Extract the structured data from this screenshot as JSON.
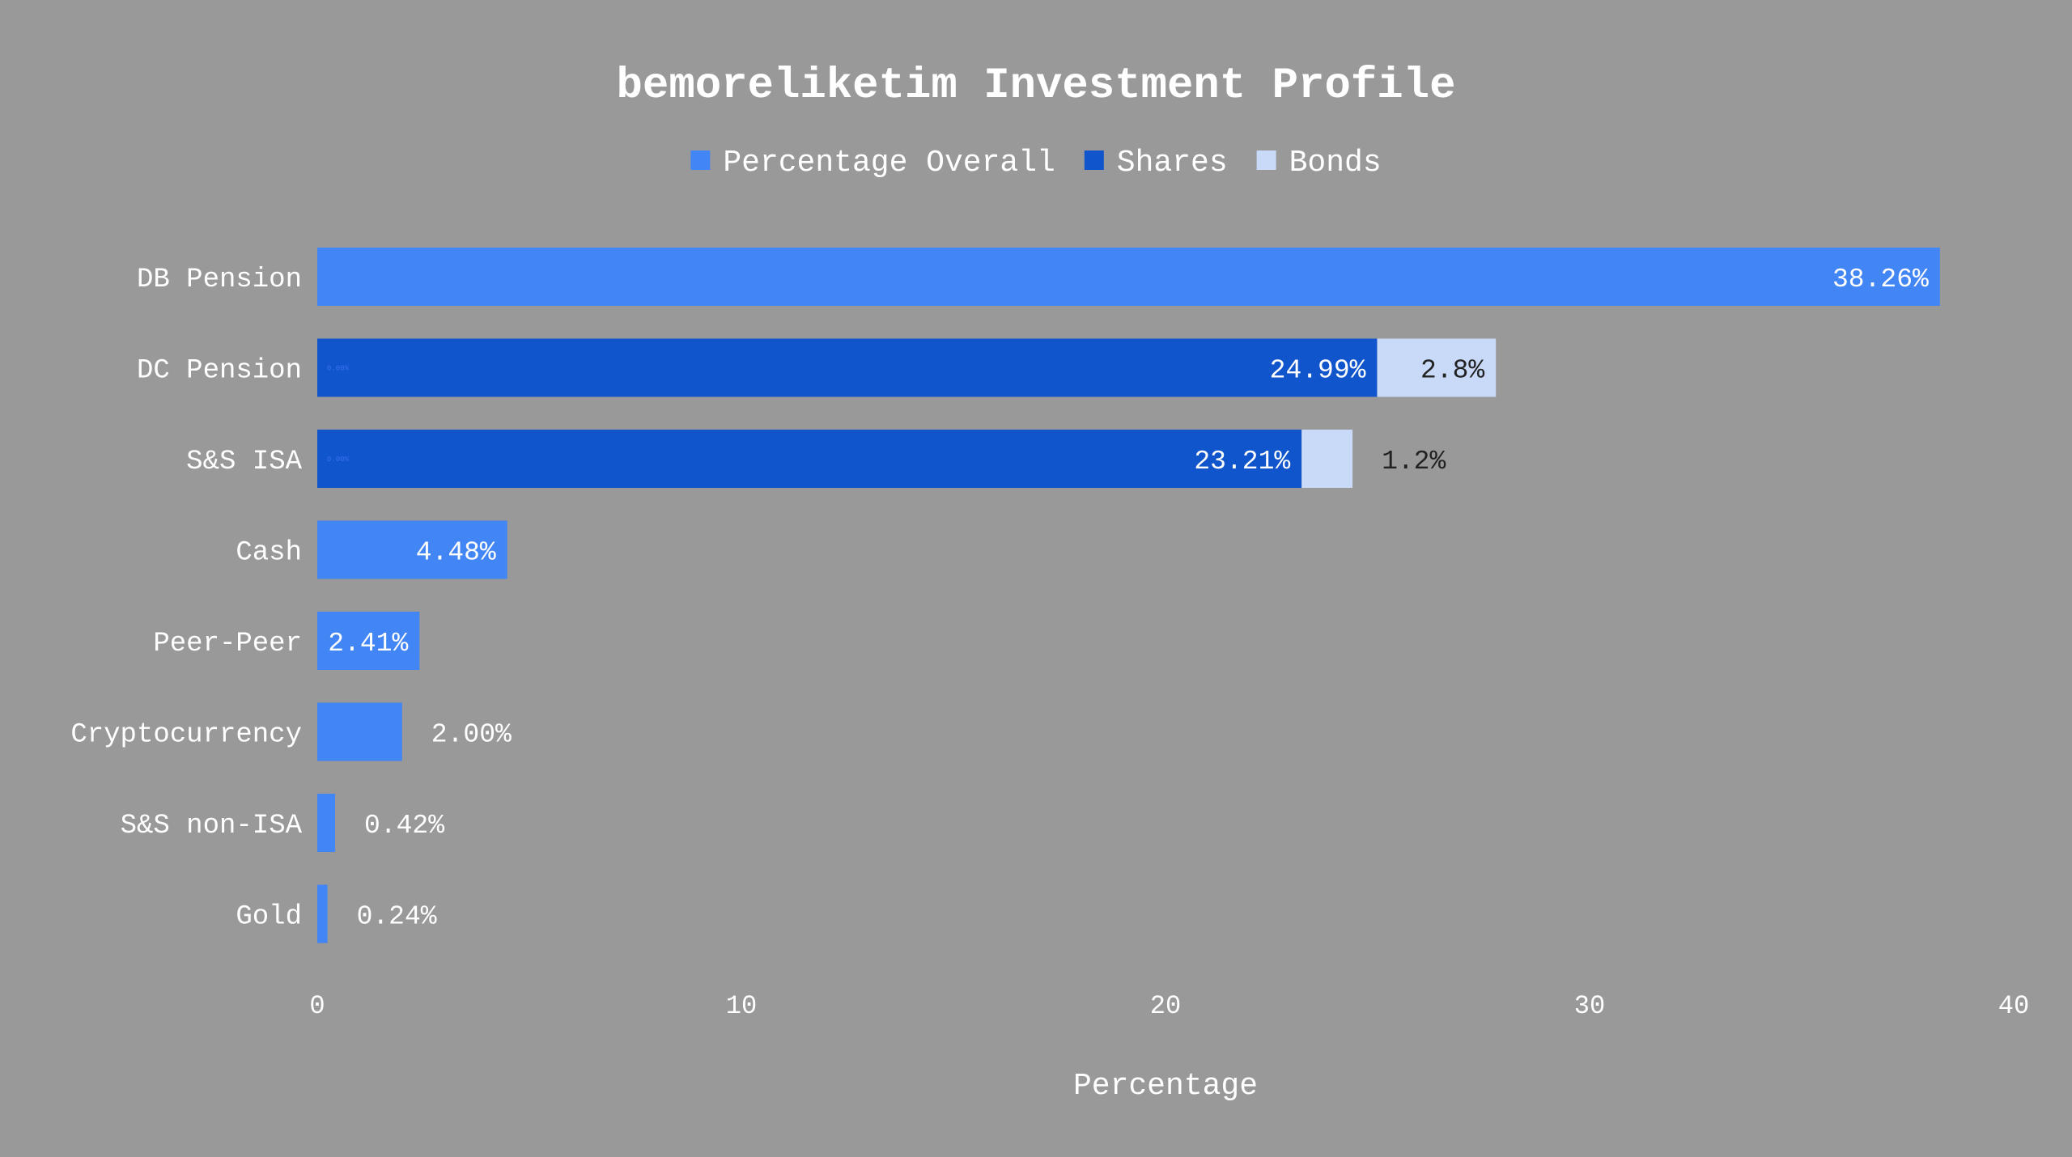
{
  "chart_data": {
    "type": "bar",
    "orientation": "horizontal",
    "stacked": true,
    "title": "bemoreliketim Investment Profile",
    "xlabel": "Percentage",
    "ylabel": "",
    "xlim": [
      0,
      40
    ],
    "xticks": [
      "0",
      "10",
      "20",
      "30",
      "40"
    ],
    "grid": false,
    "legend_position": "top-center",
    "categories": [
      "DB Pension",
      "DC Pension",
      "S&S ISA",
      "Cash",
      "Peer-Peer",
      "Cryptocurrency",
      "S&S non-ISA",
      "Gold"
    ],
    "series": [
      {
        "name": "Percentage Overall",
        "color": "#4285f4",
        "values": [
          38.26,
          0,
          0,
          4.48,
          2.41,
          2.0,
          0.42,
          0.24
        ],
        "labels": [
          "38.26%",
          "0.00%",
          "0.00%",
          "4.48%",
          "2.41%",
          "2.00%",
          "0.42%",
          "0.24%"
        ]
      },
      {
        "name": "Shares",
        "color": "#1155cc",
        "values": [
          0,
          24.99,
          23.21,
          0,
          0,
          0,
          0,
          0
        ],
        "labels": [
          "",
          "24.99%",
          "23.21%",
          "",
          "",
          "",
          "",
          ""
        ]
      },
      {
        "name": "Bonds",
        "color": "#c9daf8",
        "values": [
          0,
          2.8,
          1.2,
          0,
          0,
          0,
          0,
          0
        ],
        "labels": [
          "",
          "2.8%",
          "1.2%",
          "",
          "",
          "",
          "",
          ""
        ]
      }
    ]
  },
  "colors": {
    "background": "#999999",
    "text": "#ffffff",
    "dark_text": "#222222"
  }
}
